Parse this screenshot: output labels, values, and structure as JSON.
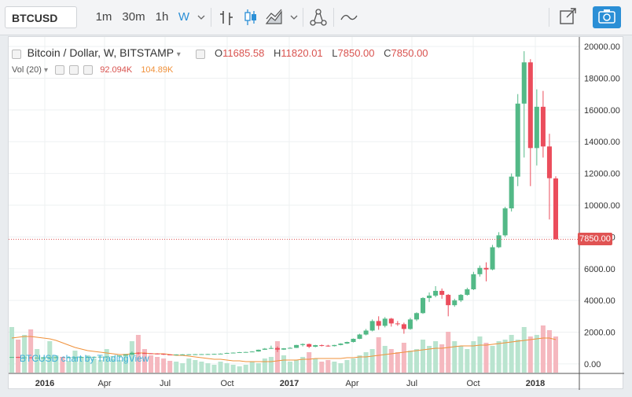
{
  "toolbar": {
    "symbol": "BTCUSD",
    "intervals": [
      "1m",
      "30m",
      "1h",
      "W"
    ],
    "active_interval": "W"
  },
  "legend": {
    "title": "Bitcoin / Dollar, W, BITSTAMP",
    "open_label": "O",
    "open": "11685.58",
    "high_label": "H",
    "high": "11820.01",
    "low_label": "L",
    "low": "7850.00",
    "close_label": "C",
    "close": "7850.00",
    "volume_label": "Vol (20)",
    "volume_value": "92.094K",
    "volume_ma_value": "104.89K"
  },
  "current_price_label": "7850.00",
  "watermark": "BTCUSD chart by TradingView",
  "colors": {
    "up": "#53b987",
    "down": "#eb4d5c",
    "volume_up": "#b9e4cf",
    "volume_down": "#f5b8bf",
    "volume_ma": "#f0913a",
    "accent": "#2b8fd6"
  },
  "chart_data": {
    "type": "candlestick",
    "title": "Bitcoin / Dollar, W, BITSTAMP",
    "y_range": [
      -600,
      20600
    ],
    "y_ticks": [
      0,
      2000,
      4000,
      6000,
      8000,
      10000,
      12000,
      14000,
      16000,
      18000,
      20000
    ],
    "y_tick_labels": [
      "0.00",
      "2000.00",
      "4000.00",
      "6000.00",
      "8000.00",
      "10000.00",
      "12000.00",
      "14000.00",
      "16000.00",
      "18000.00",
      "20000.00"
    ],
    "x_ticks": [
      "2016",
      "Apr",
      "Jul",
      "Oct",
      "2017",
      "Apr",
      "Jul",
      "Oct",
      "2018"
    ],
    "price_overlay_volume_scale": "volume scaled to lower panel",
    "candles": [
      [
        430,
        440,
        420,
        435
      ],
      [
        435,
        450,
        380,
        390
      ],
      [
        390,
        420,
        370,
        410
      ],
      [
        410,
        420,
        375,
        380
      ],
      [
        380,
        400,
        370,
        395
      ],
      [
        395,
        410,
        385,
        400
      ],
      [
        400,
        420,
        395,
        415
      ],
      [
        415,
        430,
        405,
        420
      ],
      [
        420,
        425,
        400,
        410
      ],
      [
        410,
        420,
        400,
        415
      ],
      [
        415,
        425,
        405,
        420
      ],
      [
        420,
        440,
        415,
        435
      ],
      [
        435,
        445,
        425,
        440
      ],
      [
        440,
        450,
        430,
        445
      ],
      [
        445,
        460,
        440,
        455
      ],
      [
        455,
        470,
        445,
        460
      ],
      [
        460,
        480,
        455,
        470
      ],
      [
        470,
        530,
        465,
        525
      ],
      [
        525,
        600,
        520,
        580
      ],
      [
        580,
        780,
        570,
        700
      ],
      [
        700,
        730,
        600,
        680
      ],
      [
        680,
        700,
        640,
        670
      ],
      [
        670,
        680,
        620,
        650
      ],
      [
        650,
        670,
        600,
        630
      ],
      [
        630,
        640,
        560,
        590
      ],
      [
        590,
        600,
        570,
        580
      ],
      [
        580,
        600,
        570,
        595
      ],
      [
        595,
        610,
        585,
        600
      ],
      [
        600,
        610,
        590,
        605
      ],
      [
        605,
        620,
        595,
        610
      ],
      [
        610,
        620,
        600,
        615
      ],
      [
        615,
        630,
        605,
        620
      ],
      [
        620,
        640,
        610,
        630
      ],
      [
        630,
        660,
        620,
        645
      ],
      [
        645,
        700,
        640,
        690
      ],
      [
        690,
        720,
        680,
        710
      ],
      [
        710,
        750,
        700,
        740
      ],
      [
        740,
        760,
        720,
        750
      ],
      [
        750,
        800,
        740,
        780
      ],
      [
        780,
        900,
        770,
        890
      ],
      [
        890,
        1000,
        880,
        960
      ],
      [
        960,
        1150,
        940,
        1000
      ],
      [
        1000,
        1100,
        750,
        900
      ],
      [
        900,
        1000,
        880,
        980
      ],
      [
        980,
        1050,
        960,
        1010
      ],
      [
        1010,
        1200,
        1000,
        1190
      ],
      [
        1190,
        1290,
        1100,
        1250
      ],
      [
        1250,
        1280,
        1000,
        1080
      ],
      [
        1080,
        1200,
        1050,
        1180
      ],
      [
        1180,
        1220,
        1100,
        1150
      ],
      [
        1150,
        1200,
        1080,
        1120
      ],
      [
        1120,
        1200,
        1100,
        1190
      ],
      [
        1190,
        1300,
        1170,
        1280
      ],
      [
        1280,
        1400,
        1260,
        1380
      ],
      [
        1380,
        1600,
        1350,
        1580
      ],
      [
        1580,
        1900,
        1560,
        1850
      ],
      [
        1850,
        2200,
        1800,
        2100
      ],
      [
        2100,
        2800,
        2050,
        2700
      ],
      [
        2700,
        3000,
        2150,
        2400
      ],
      [
        2400,
        2950,
        2300,
        2850
      ],
      [
        2850,
        2900,
        2350,
        2550
      ],
      [
        2550,
        2700,
        2400,
        2500
      ],
      [
        2500,
        2600,
        1900,
        2200
      ],
      [
        2200,
        2900,
        2150,
        2800
      ],
      [
        2800,
        3250,
        2700,
        3200
      ],
      [
        3200,
        4200,
        3150,
        4150
      ],
      [
        4150,
        4500,
        3900,
        4300
      ],
      [
        4300,
        4900,
        4200,
        4600
      ],
      [
        4600,
        4750,
        4100,
        4350
      ],
      [
        4350,
        4400,
        3000,
        3700
      ],
      [
        3700,
        4100,
        3600,
        4000
      ],
      [
        4000,
        4400,
        3900,
        4350
      ],
      [
        4350,
        4800,
        4300,
        4700
      ],
      [
        4700,
        5800,
        4650,
        5650
      ],
      [
        5650,
        6200,
        5500,
        6050
      ],
      [
        6050,
        6400,
        5200,
        5950
      ],
      [
        5950,
        7500,
        5900,
        7350
      ],
      [
        7350,
        8300,
        7300,
        8100
      ],
      [
        8100,
        9900,
        8000,
        9800
      ],
      [
        9800,
        12000,
        9600,
        11800
      ],
      [
        11800,
        17000,
        11200,
        16400
      ],
      [
        16400,
        19700,
        13000,
        19000
      ],
      [
        19000,
        19200,
        11200,
        13600
      ],
      [
        13600,
        17300,
        12500,
        16200
      ],
      [
        16200,
        17200,
        13000,
        13700
      ],
      [
        13700,
        14500,
        9100,
        11700
      ],
      [
        11685.58,
        11820.01,
        7850,
        7850
      ]
    ],
    "volume": [
      58,
      42,
      48,
      55,
      30,
      20,
      40,
      22,
      18,
      15,
      28,
      20,
      22,
      18,
      16,
      30,
      18,
      16,
      24,
      40,
      48,
      30,
      22,
      20,
      18,
      15,
      14,
      12,
      18,
      16,
      14,
      12,
      10,
      14,
      12,
      10,
      8,
      10,
      14,
      12,
      18,
      20,
      40,
      22,
      14,
      16,
      20,
      26,
      18,
      14,
      16,
      14,
      12,
      16,
      18,
      22,
      26,
      30,
      45,
      34,
      30,
      26,
      38,
      28,
      30,
      42,
      34,
      40,
      36,
      52,
      40,
      34,
      30,
      40,
      46,
      38,
      34,
      40,
      42,
      48,
      42,
      58,
      46,
      48,
      60,
      54,
      46
    ],
    "volume_ma": [
      44,
      45,
      46,
      46,
      45,
      44,
      43,
      41,
      38,
      35,
      32,
      30,
      28,
      27,
      26,
      25,
      24,
      23,
      23,
      24,
      25,
      25,
      24,
      24,
      24,
      23,
      22,
      22,
      21,
      20,
      19,
      18,
      17,
      17,
      16,
      15,
      15,
      14,
      14,
      14,
      14,
      14,
      15,
      16,
      16,
      16,
      17,
      17,
      18,
      18,
      18,
      18,
      18,
      19,
      19,
      20,
      20,
      21,
      22,
      23,
      24,
      25,
      26,
      27,
      28,
      29,
      30,
      31,
      31,
      32,
      33,
      34,
      34,
      34,
      35,
      35,
      36,
      37,
      38,
      39,
      40,
      41,
      42,
      43,
      44,
      44,
      42
    ]
  }
}
